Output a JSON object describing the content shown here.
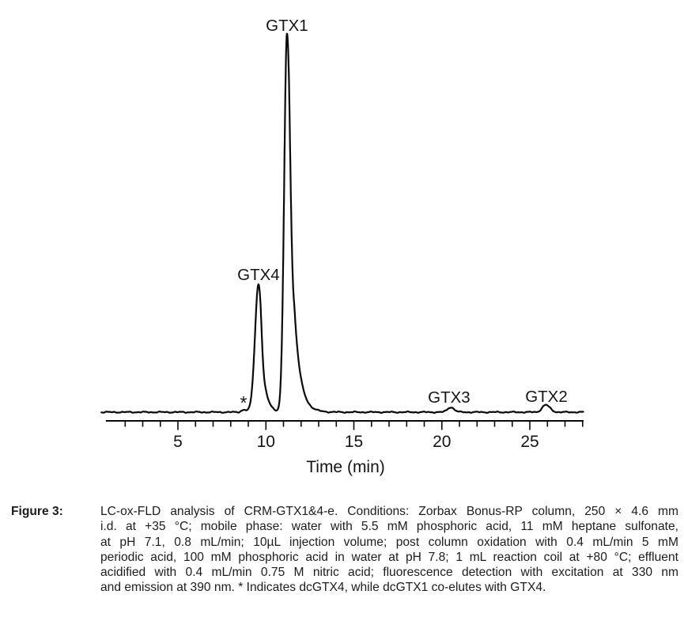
{
  "chart_data": {
    "type": "line",
    "title": "",
    "xlabel": "Time (min)",
    "ylabel": "",
    "x_axis": {
      "min": 1,
      "max": 28,
      "minor_tick_interval": 1,
      "labeled_ticks": [
        5,
        10,
        15,
        20,
        25
      ]
    },
    "y_axis": {
      "visible": false
    },
    "trace_color": "#0a0a0a",
    "peaks": [
      {
        "compound": "dcGTX4",
        "label": "*",
        "time_min": 8.73,
        "rel_height": 0.006,
        "sigma_left": 0.13,
        "sigma_right": 0.22
      },
      {
        "compound": "GTX4",
        "label": "GTX4",
        "time_min": 9.58,
        "rel_height": 0.339,
        "sigma_left": 0.2,
        "sigma_right": 0.2,
        "tail_tau": 0.24
      },
      {
        "compound": "GTX1",
        "label": "GTX1",
        "time_min": 11.2,
        "rel_height": 1.0,
        "sigma_left": 0.16,
        "sigma_right": 0.22,
        "tail_tau": 0.33
      },
      {
        "compound": "GTX3",
        "label": "GTX3",
        "time_min": 20.5,
        "rel_height": 0.013,
        "sigma_left": 0.18,
        "sigma_right": 0.2
      },
      {
        "compound": "GTX2",
        "label": "GTX2",
        "time_min": 25.9,
        "rel_height": 0.019,
        "sigma_left": 0.2,
        "sigma_right": 0.24
      }
    ]
  },
  "figure_caption": {
    "label": "Figure 3:",
    "lines": [
      "LC-ox-FLD analysis of CRM-GTX1&4-e. Conditions: Zorbax Bonus-RP column, 250 × 4.6 mm",
      "i.d. at +35 °C; mobile phase: water with 5.5 mM phosphoric acid, 11 mM heptane sulfonate,",
      "at pH 7.1, 0.8 mL/min; 10µL injection volume; post column oxidation with 0.4 mL/min 5 mM",
      "periodic acid, 100 mM phosphoric acid in water at pH 7.8; 1 mL reaction coil at +80 °C; effluent",
      "acidified with 0.4 mL/min 0.75 M nitric acid; fluorescence detection with excitation at 330 nm",
      "and emission at 390 nm. * Indicates dcGTX4, while dcGTX1 co-elutes with GTX4."
    ]
  }
}
